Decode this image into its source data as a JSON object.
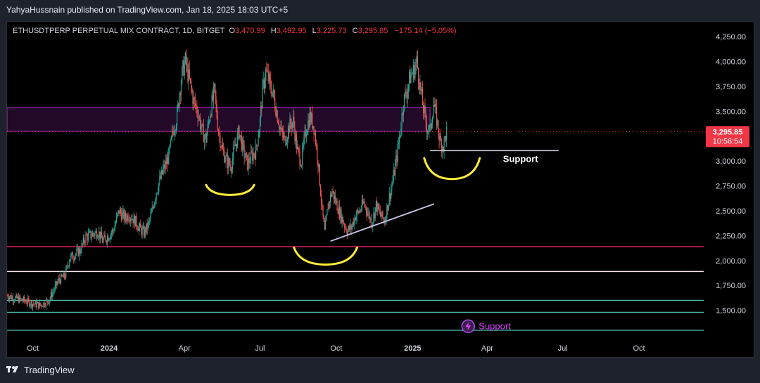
{
  "header": {
    "published_by": "YahyaHussnain published on TradingView.com, Jan 18, 2025 18:03 UTC+5"
  },
  "footer": {
    "brand": "TradingView"
  },
  "chart_data": {
    "type": "candlestick",
    "symbol": "ETHUSDTPERP PERPETUAL MIX CONTRACT, 1D, BITGET",
    "ohlc": {
      "o_label": "O",
      "o": "3,470.99",
      "h_label": "H",
      "h": "3,492.95",
      "l_label": "L",
      "l": "3,225.73",
      "c_label": "C",
      "c": "3,295.85",
      "change": "−175.14 (−5.05%)"
    },
    "price_tag": {
      "price": "3,295.85",
      "countdown": "10:56:54"
    },
    "ylim": [
      1250,
      4400
    ],
    "yticks": [
      {
        "value": 4250,
        "label": "4,250.00"
      },
      {
        "value": 4000,
        "label": "4,000.00"
      },
      {
        "value": 3750,
        "label": "3,750.00"
      },
      {
        "value": 3500,
        "label": "3,500.00"
      },
      {
        "value": 3000,
        "label": "3,000.00"
      },
      {
        "value": 2750,
        "label": "2,750.00"
      },
      {
        "value": 2500,
        "label": "2,500.00"
      },
      {
        "value": 2250,
        "label": "2,250.00"
      },
      {
        "value": 2000,
        "label": "2,000.00"
      },
      {
        "value": 1750,
        "label": "1,750.00"
      },
      {
        "value": 1500,
        "label": "1,500.00"
      }
    ],
    "xticks": [
      {
        "day": 31,
        "label": "Oct"
      },
      {
        "day": 123,
        "label": "2024"
      },
      {
        "day": 214,
        "label": "Apr"
      },
      {
        "day": 305,
        "label": "Jul"
      },
      {
        "day": 397,
        "label": "Oct"
      },
      {
        "day": 489,
        "label": "2025"
      },
      {
        "day": 579,
        "label": "Apr"
      },
      {
        "day": 670,
        "label": "Jul"
      },
      {
        "day": 762,
        "label": "Oct"
      }
    ],
    "xlim": [
      0,
      840
    ],
    "price_path": [
      [
        0,
        1650
      ],
      [
        10,
        1620
      ],
      [
        20,
        1600
      ],
      [
        30,
        1570
      ],
      [
        40,
        1550
      ],
      [
        50,
        1600
      ],
      [
        55,
        1680
      ],
      [
        62,
        1800
      ],
      [
        70,
        1850
      ],
      [
        75,
        2020
      ],
      [
        80,
        2050
      ],
      [
        88,
        2100
      ],
      [
        95,
        2240
      ],
      [
        102,
        2260
      ],
      [
        110,
        2290
      ],
      [
        115,
        2200
      ],
      [
        120,
        2230
      ],
      [
        128,
        2300
      ],
      [
        135,
        2500
      ],
      [
        142,
        2430
      ],
      [
        148,
        2460
      ],
      [
        155,
        2390
      ],
      [
        160,
        2320
      ],
      [
        165,
        2280
      ],
      [
        170,
        2350
      ],
      [
        175,
        2500
      ],
      [
        180,
        2700
      ],
      [
        188,
        2900
      ],
      [
        195,
        3050
      ],
      [
        200,
        3300
      ],
      [
        205,
        3450
      ],
      [
        208,
        3700
      ],
      [
        212,
        3920
      ],
      [
        215,
        4000
      ],
      [
        220,
        3800
      ],
      [
        225,
        3600
      ],
      [
        230,
        3500
      ],
      [
        235,
        3300
      ],
      [
        240,
        3220
      ],
      [
        245,
        3500
      ],
      [
        250,
        3700
      ],
      [
        255,
        3300
      ],
      [
        260,
        3100
      ],
      [
        265,
        3000
      ],
      [
        270,
        2950
      ],
      [
        275,
        3150
      ],
      [
        280,
        3300
      ],
      [
        285,
        3100
      ],
      [
        290,
        2970
      ],
      [
        295,
        3050
      ],
      [
        300,
        3100
      ],
      [
        305,
        3400
      ],
      [
        308,
        3700
      ],
      [
        312,
        3900
      ],
      [
        316,
        3800
      ],
      [
        320,
        3700
      ],
      [
        325,
        3500
      ],
      [
        330,
        3300
      ],
      [
        335,
        3200
      ],
      [
        340,
        3350
      ],
      [
        345,
        3400
      ],
      [
        350,
        3100
      ],
      [
        355,
        3000
      ],
      [
        360,
        3300
      ],
      [
        365,
        3450
      ],
      [
        370,
        3350
      ],
      [
        375,
        3000
      ],
      [
        380,
        2500
      ],
      [
        383,
        2280
      ],
      [
        387,
        2550
      ],
      [
        392,
        2700
      ],
      [
        398,
        2550
      ],
      [
        405,
        2400
      ],
      [
        410,
        2300
      ],
      [
        415,
        2330
      ],
      [
        420,
        2450
      ],
      [
        425,
        2500
      ],
      [
        430,
        2580
      ],
      [
        435,
        2480
      ],
      [
        440,
        2380
      ],
      [
        445,
        2560
      ],
      [
        450,
        2460
      ],
      [
        455,
        2400
      ],
      [
        460,
        2600
      ],
      [
        465,
        2800
      ],
      [
        470,
        3050
      ],
      [
        474,
        3300
      ],
      [
        478,
        3600
      ],
      [
        482,
        3700
      ],
      [
        486,
        3850
      ],
      [
        490,
        3900
      ],
      [
        494,
        4000
      ],
      [
        498,
        3750
      ],
      [
        502,
        3520
      ],
      [
        506,
        3350
      ],
      [
        510,
        3300
      ],
      [
        514,
        3580
      ],
      [
        518,
        3420
      ],
      [
        522,
        3200
      ],
      [
        526,
        3150
      ],
      [
        530,
        3300
      ]
    ],
    "zone": {
      "top": 3540,
      "bottom": 3300,
      "x_start": 0,
      "x_end": 510
    },
    "horizontal_lines": [
      {
        "value": 2140,
        "color": "#e91e63"
      },
      {
        "value": 1890,
        "color": "#fce4ec"
      },
      {
        "value": 1600,
        "color": "#4db6ac"
      },
      {
        "value": 1480,
        "color": "#4db6ac"
      },
      {
        "value": 1300,
        "color": "#4db6ac"
      }
    ],
    "annotations": [
      {
        "type": "label",
        "text": "Support",
        "x": 598,
        "value": 3020
      },
      {
        "type": "label",
        "text": "Support",
        "x": 556,
        "value": 1340
      }
    ],
    "colors": {
      "up": "#26a69a",
      "down": "#ef5350",
      "zone": "#9c27b0",
      "arc": "#ffeb3b",
      "tag": "#f23645"
    }
  }
}
